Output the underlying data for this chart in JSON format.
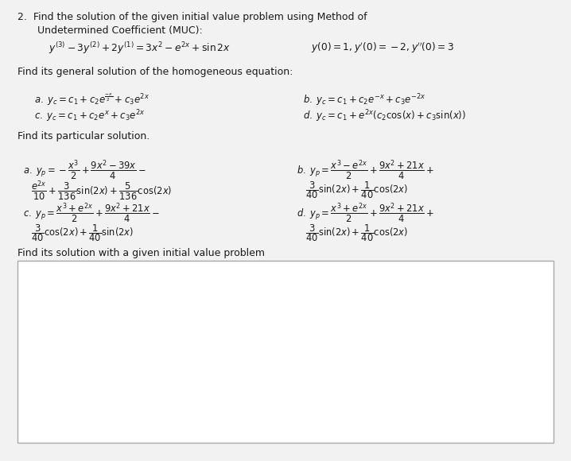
{
  "bg_color": "#f2f2f2",
  "white": "#ffffff",
  "text_color": "#1a1a1a",
  "title_line1": "2.  Find the solution of the given initial value problem using Method of",
  "title_line2": "Undetermined Coefficient (MUC):",
  "eq_ode": "$y^{(3)} - 3y^{(2)} + 2y^{(1)} = 3x^2 - e^{2x} + \\sin 2x$",
  "eq_ic": "$y(0) = 1, y'(0) = -2, y''(0) = 3$",
  "homog_label": "Find its general solution of the homogeneous equation:",
  "homog_a": "$a. \\; y_c = c_1 + c_2 e^{\\frac{-x}{2}} + c_3 e^{2x}$",
  "homog_b": "$b. \\; y_c = c_1 + c_2 e^{-x} + c_3 e^{-2x}$",
  "homog_c": "$c. \\; y_c = c_1 + c_2 e^{x} + c_3 e^{2x}$",
  "homog_d": "$d. \\; y_c = c_1 + e^{2x}(c_2 \\cos(x) + c_3 \\sin(x))$",
  "partic_label": "Find its particular solution.",
  "partic_a1": "$a. \\; y_p = -\\dfrac{x^3}{2} + \\dfrac{9x^2-39x}{4} -$",
  "partic_a2": "$\\dfrac{e^{2x}}{10} + \\dfrac{3}{136}\\sin(2x) + \\dfrac{5}{136}\\cos(2x)$",
  "partic_b1": "$b. \\; y_p = \\dfrac{x^3-e^{2x}}{2} + \\dfrac{9x^2+21x}{4} +$",
  "partic_b2": "$\\dfrac{3}{40}\\sin(2x) + \\dfrac{1}{40}\\cos(2x)$",
  "partic_c1": "$c. \\; y_p = \\dfrac{x^3+e^{2x}}{2} + \\dfrac{9x^2+21x}{4} -$",
  "partic_c2": "$\\dfrac{3}{40}\\cos(2x) + \\dfrac{1}{40}\\sin(2x)$",
  "partic_d1": "$d. \\; y_p = \\dfrac{x^3+e^{2x}}{2} + \\dfrac{9x^2+21x}{4} +$",
  "partic_d2": "$\\dfrac{3}{40}\\sin(2x) + \\dfrac{1}{40}\\cos(2x)$",
  "final_label": "Find its solution with a given initial value problem",
  "box_color": "#ffffff",
  "box_edge_color": "#aaaaaa"
}
